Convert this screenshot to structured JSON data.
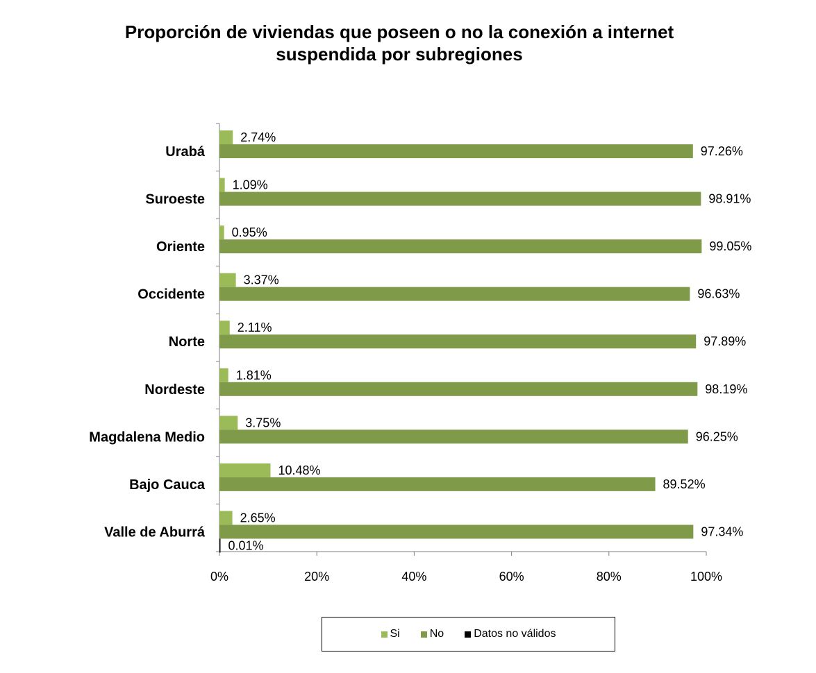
{
  "chart_data": {
    "type": "bar",
    "orientation": "horizontal",
    "title_lines": [
      "Proporción de viviendas que poseen o no la conexión a internet",
      "suspendida por subregiones"
    ],
    "categories": [
      "Urabá",
      "Suroeste",
      "Oriente",
      "Occidente",
      "Norte",
      "Nordeste",
      "Magdalena Medio",
      "Bajo Cauca",
      "Valle de Aburrá"
    ],
    "series": [
      {
        "name": "Si",
        "color": "#9bbb59",
        "values": [
          2.74,
          1.09,
          0.95,
          3.37,
          2.11,
          1.81,
          3.75,
          10.48,
          2.65
        ],
        "labels": [
          "2.74%",
          "1.09%",
          "0.95%",
          "3.37%",
          "2.11%",
          "1.81%",
          "3.75%",
          "10.48%",
          "2.65%"
        ]
      },
      {
        "name": "No",
        "color": "#7f9a48",
        "values": [
          97.26,
          98.91,
          99.05,
          96.63,
          97.89,
          98.19,
          96.25,
          89.52,
          97.34
        ],
        "labels": [
          "97.26%",
          "98.91%",
          "99.05%",
          "96.63%",
          "97.89%",
          "98.19%",
          "96.25%",
          "89.52%",
          "97.34%"
        ]
      },
      {
        "name": "Datos no válidos",
        "color": "#000000",
        "values": [
          null,
          null,
          null,
          null,
          null,
          null,
          null,
          null,
          0.01
        ],
        "labels": [
          "",
          "",
          "",
          "",
          "",
          "",
          "",
          "",
          "0.01%"
        ]
      }
    ],
    "xlim": [
      0,
      100
    ],
    "x_ticks": [
      0,
      20,
      40,
      60,
      80,
      100
    ],
    "x_tick_labels": [
      "0%",
      "20%",
      "40%",
      "60%",
      "80%",
      "100%"
    ],
    "grid": false,
    "legend_position": "bottom"
  }
}
